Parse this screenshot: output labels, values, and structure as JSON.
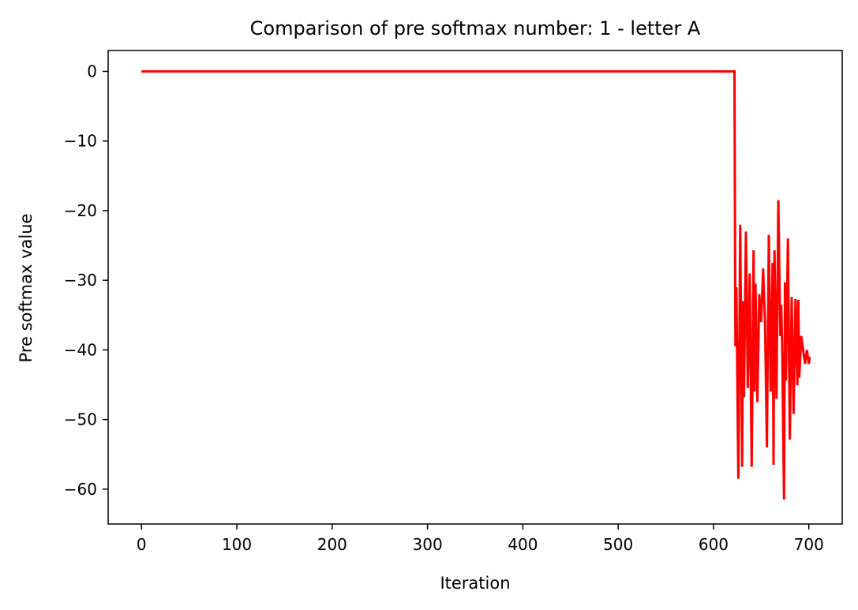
{
  "chart_data": {
    "type": "line",
    "title": "Comparison of pre softmax number: 1 - letter A",
    "xlabel": "Iteration",
    "ylabel": "Pre softmax value",
    "xlim": [
      -35,
      735
    ],
    "ylim": [
      -65,
      3
    ],
    "grid": false,
    "line_color": "#ff0000",
    "x_ticks": [
      0,
      100,
      200,
      300,
      400,
      500,
      600,
      700
    ],
    "x_tick_labels": [
      "0",
      "100",
      "200",
      "300",
      "400",
      "500",
      "600",
      "700"
    ],
    "y_ticks": [
      0,
      -10,
      -20,
      -30,
      -40,
      -50,
      -60
    ],
    "y_tick_labels": [
      "0",
      "−10",
      "−20",
      "−30",
      "−40",
      "−50",
      "−60"
    ],
    "series": [
      {
        "color": "#ff0000",
        "x": [
          0,
          622,
          623,
          624,
          626,
          628,
          630,
          631,
          632,
          634,
          636,
          638,
          640,
          642,
          643,
          644,
          646,
          648,
          650,
          652,
          654,
          656,
          658,
          660,
          662,
          663,
          664,
          666,
          668,
          670,
          671,
          672,
          674,
          675,
          676,
          678,
          680,
          682,
          684,
          686,
          688,
          689,
          690,
          692,
          694,
          696,
          698,
          700,
          701
        ],
        "y": [
          0,
          0,
          -39.5,
          -31,
          -58.5,
          -22,
          -56.8,
          -33,
          -46.8,
          -23,
          -45.5,
          -29,
          -56.8,
          -25.7,
          -46,
          -30.5,
          -47.5,
          -32,
          -36,
          -28.3,
          -36,
          -54,
          -23.5,
          -46,
          -27.5,
          -56.5,
          -25.7,
          -47,
          -18.5,
          -38,
          -33.5,
          -39.4,
          -61.5,
          -30.3,
          -44.4,
          -24,
          -52.9,
          -32.4,
          -49.2,
          -32.7,
          -45.1,
          -32.8,
          -44,
          -38,
          -40,
          -42,
          -40,
          -42,
          -41
        ]
      }
    ]
  }
}
